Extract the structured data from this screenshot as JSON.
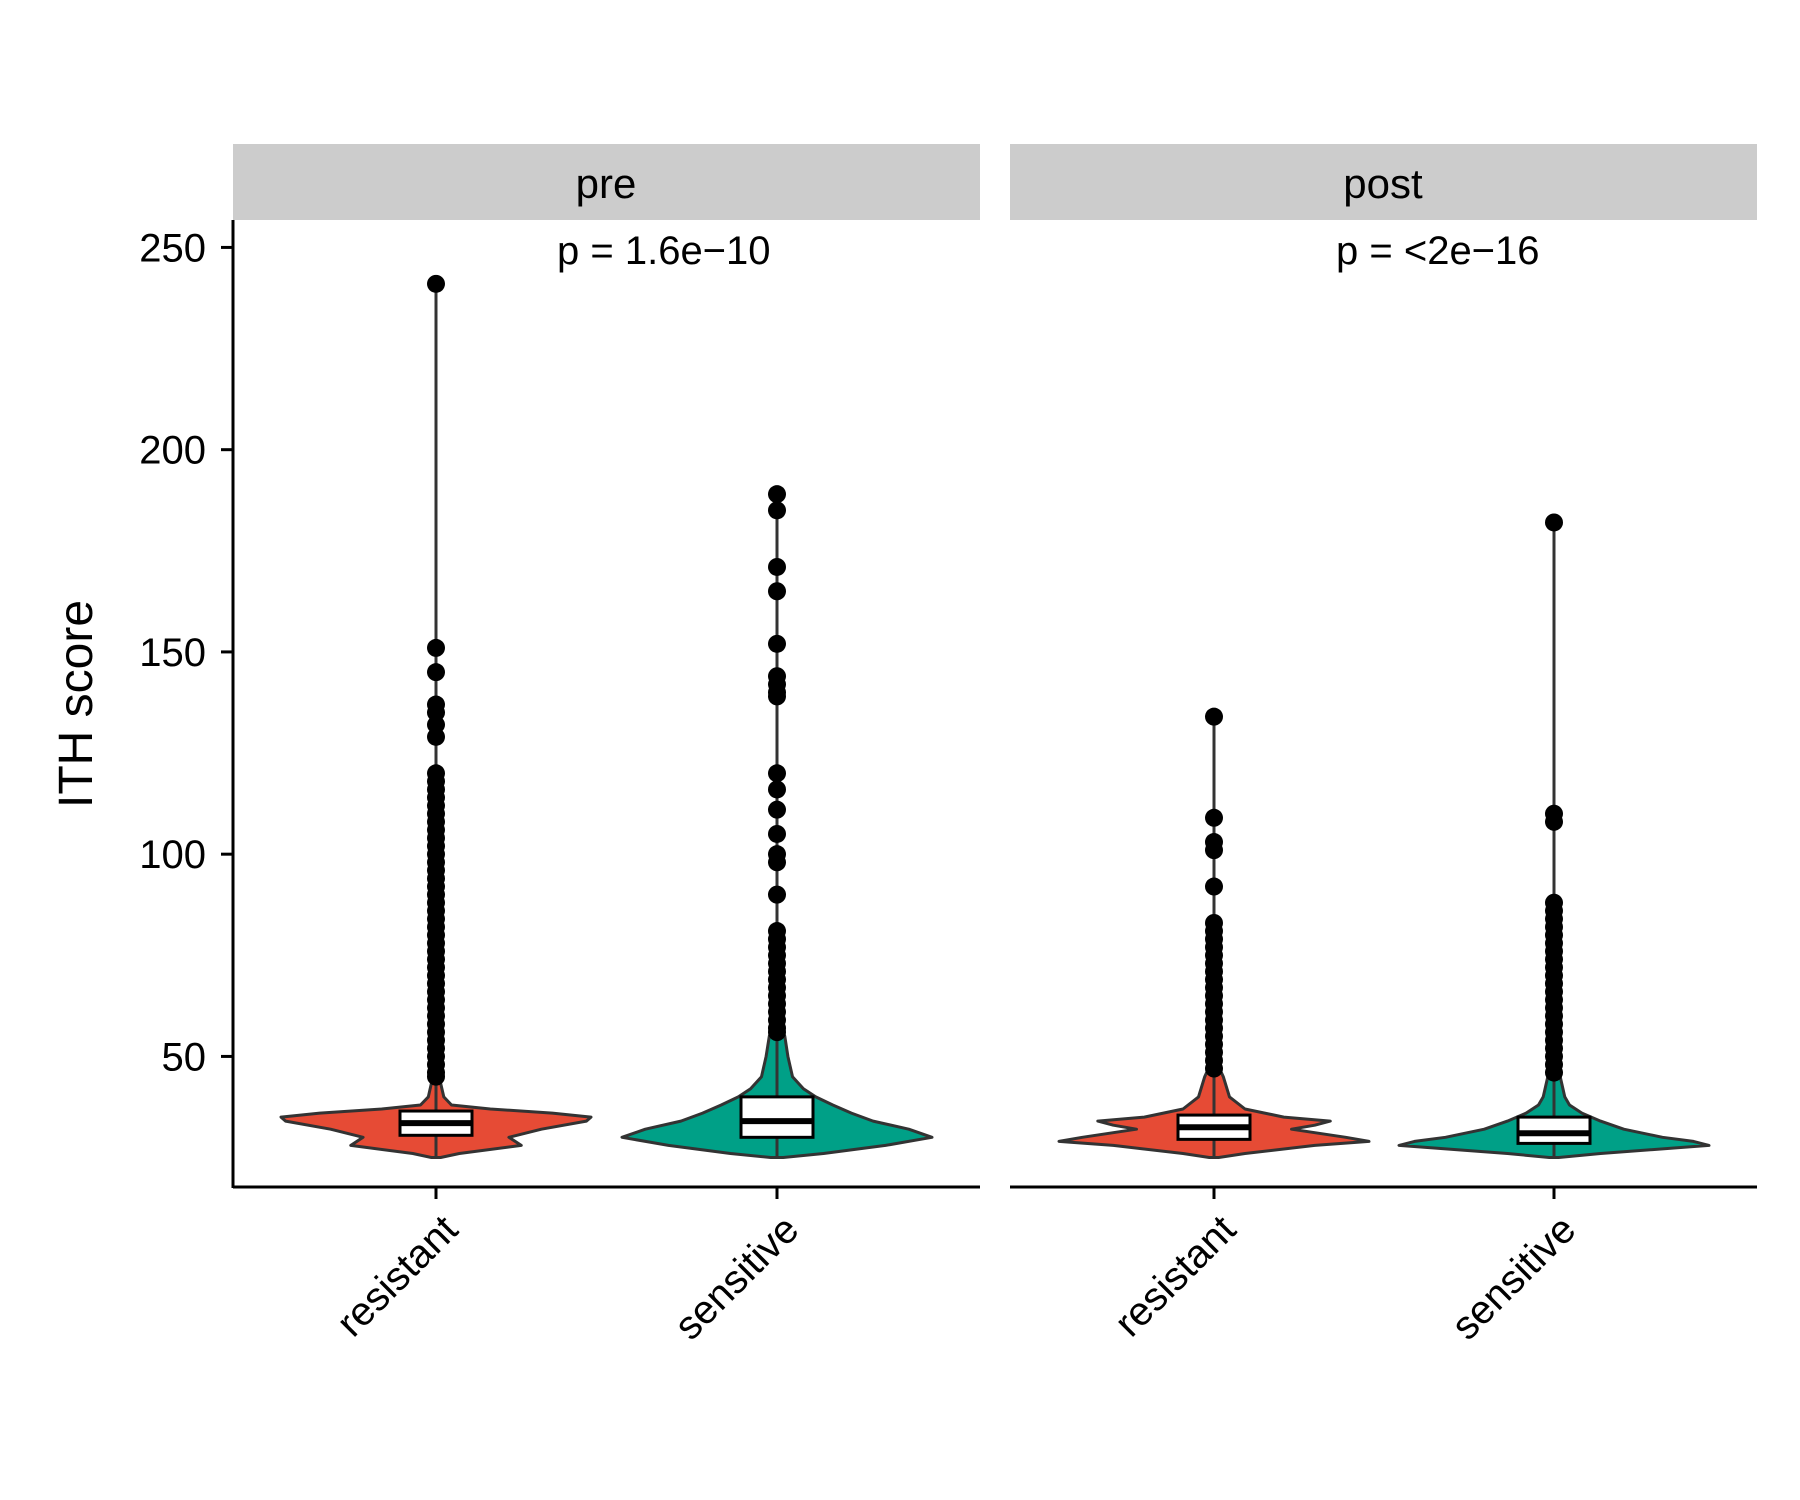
{
  "chart_data": {
    "type": "violin",
    "ylabel": "ITH score",
    "ylim": [
      15,
      253
    ],
    "yticks": [
      50,
      100,
      150,
      200,
      250
    ],
    "categories": [
      "resistant",
      "sensitive"
    ],
    "colors": {
      "resistant": "#E64B35",
      "sensitive": "#00A087",
      "outline": "#333333",
      "strip": "#CCCCCC",
      "point": "#000000"
    },
    "panels": [
      {
        "title": "pre",
        "pvalue": "p = 1.6e−10",
        "groups": [
          {
            "label": "resistant",
            "whisker_low": 25,
            "q1": 30.5,
            "median": 33.5,
            "q3": 36.5,
            "whisker_high": 44,
            "outliers": [
              241,
              151,
              145,
              137,
              135,
              132,
              129,
              120,
              118,
              116,
              114,
              112,
              110,
              108,
              106,
              104,
              102,
              100,
              98,
              96,
              94,
              92,
              90,
              88,
              86,
              84,
              82,
              80,
              78,
              76,
              74,
              72,
              70,
              68,
              66,
              64,
              62,
              60,
              58,
              56,
              54,
              52,
              50,
              48,
              46,
              45
            ],
            "density": [
              [
                25,
                0.03
              ],
              [
                26,
                0.15
              ],
              [
                28,
                0.55
              ],
              [
                30,
                0.47
              ],
              [
                32,
                0.68
              ],
              [
                34,
                0.97
              ],
              [
                35,
                1.0
              ],
              [
                36,
                0.75
              ],
              [
                37,
                0.35
              ],
              [
                38,
                0.1
              ],
              [
                40,
                0.05
              ],
              [
                45,
                0.02
              ],
              [
                60,
                0.0
              ]
            ]
          },
          {
            "label": "sensitive",
            "whisker_low": 25,
            "q1": 30,
            "median": 34,
            "q3": 40,
            "whisker_high": 55,
            "outliers": [
              189,
              185,
              171,
              165,
              152,
              144,
              142,
              140,
              139,
              120,
              116,
              111,
              105,
              100,
              98,
              90,
              81,
              79,
              77,
              75,
              73,
              71,
              69,
              67,
              65,
              63,
              61,
              59,
              57,
              56
            ],
            "density": [
              [
                25,
                0.04
              ],
              [
                26,
                0.3
              ],
              [
                28,
                0.7
              ],
              [
                30,
                1.0
              ],
              [
                32,
                0.85
              ],
              [
                34,
                0.62
              ],
              [
                36,
                0.48
              ],
              [
                38,
                0.36
              ],
              [
                40,
                0.25
              ],
              [
                42,
                0.17
              ],
              [
                45,
                0.1
              ],
              [
                50,
                0.07
              ],
              [
                55,
                0.05
              ],
              [
                58,
                0.02
              ],
              [
                60,
                0.0
              ]
            ]
          }
        ]
      },
      {
        "title": "post",
        "pvalue": "p = <2e−16",
        "groups": [
          {
            "label": "resistant",
            "whisker_low": 25,
            "q1": 29.5,
            "median": 32.5,
            "q3": 35.5,
            "whisker_high": 46,
            "outliers": [
              134,
              109,
              103,
              101,
              92,
              83,
              81,
              79,
              77,
              75,
              73,
              71,
              69,
              67,
              65,
              63,
              61,
              59,
              57,
              55,
              53,
              51,
              49,
              47
            ],
            "density": [
              [
                25,
                0.03
              ],
              [
                26,
                0.2
              ],
              [
                28,
                0.65
              ],
              [
                29,
                1.0
              ],
              [
                30,
                0.85
              ],
              [
                32,
                0.5
              ],
              [
                33,
                0.65
              ],
              [
                34,
                0.75
              ],
              [
                35,
                0.45
              ],
              [
                37,
                0.2
              ],
              [
                40,
                0.1
              ],
              [
                45,
                0.06
              ],
              [
                50,
                0.0
              ]
            ]
          },
          {
            "label": "sensitive",
            "whisker_low": 25,
            "q1": 28.5,
            "median": 31,
            "q3": 35,
            "whisker_high": 45,
            "outliers": [
              182,
              110,
              108,
              88,
              86,
              84,
              82,
              80,
              78,
              76,
              74,
              72,
              70,
              68,
              66,
              64,
              62,
              60,
              58,
              56,
              54,
              52,
              50,
              48,
              46
            ],
            "density": [
              [
                25,
                0.03
              ],
              [
                26,
                0.3
              ],
              [
                28,
                1.0
              ],
              [
                29,
                0.9
              ],
              [
                30,
                0.7
              ],
              [
                32,
                0.45
              ],
              [
                34,
                0.3
              ],
              [
                36,
                0.18
              ],
              [
                38,
                0.1
              ],
              [
                40,
                0.07
              ],
              [
                45,
                0.04
              ],
              [
                50,
                0.0
              ]
            ]
          }
        ]
      }
    ]
  }
}
